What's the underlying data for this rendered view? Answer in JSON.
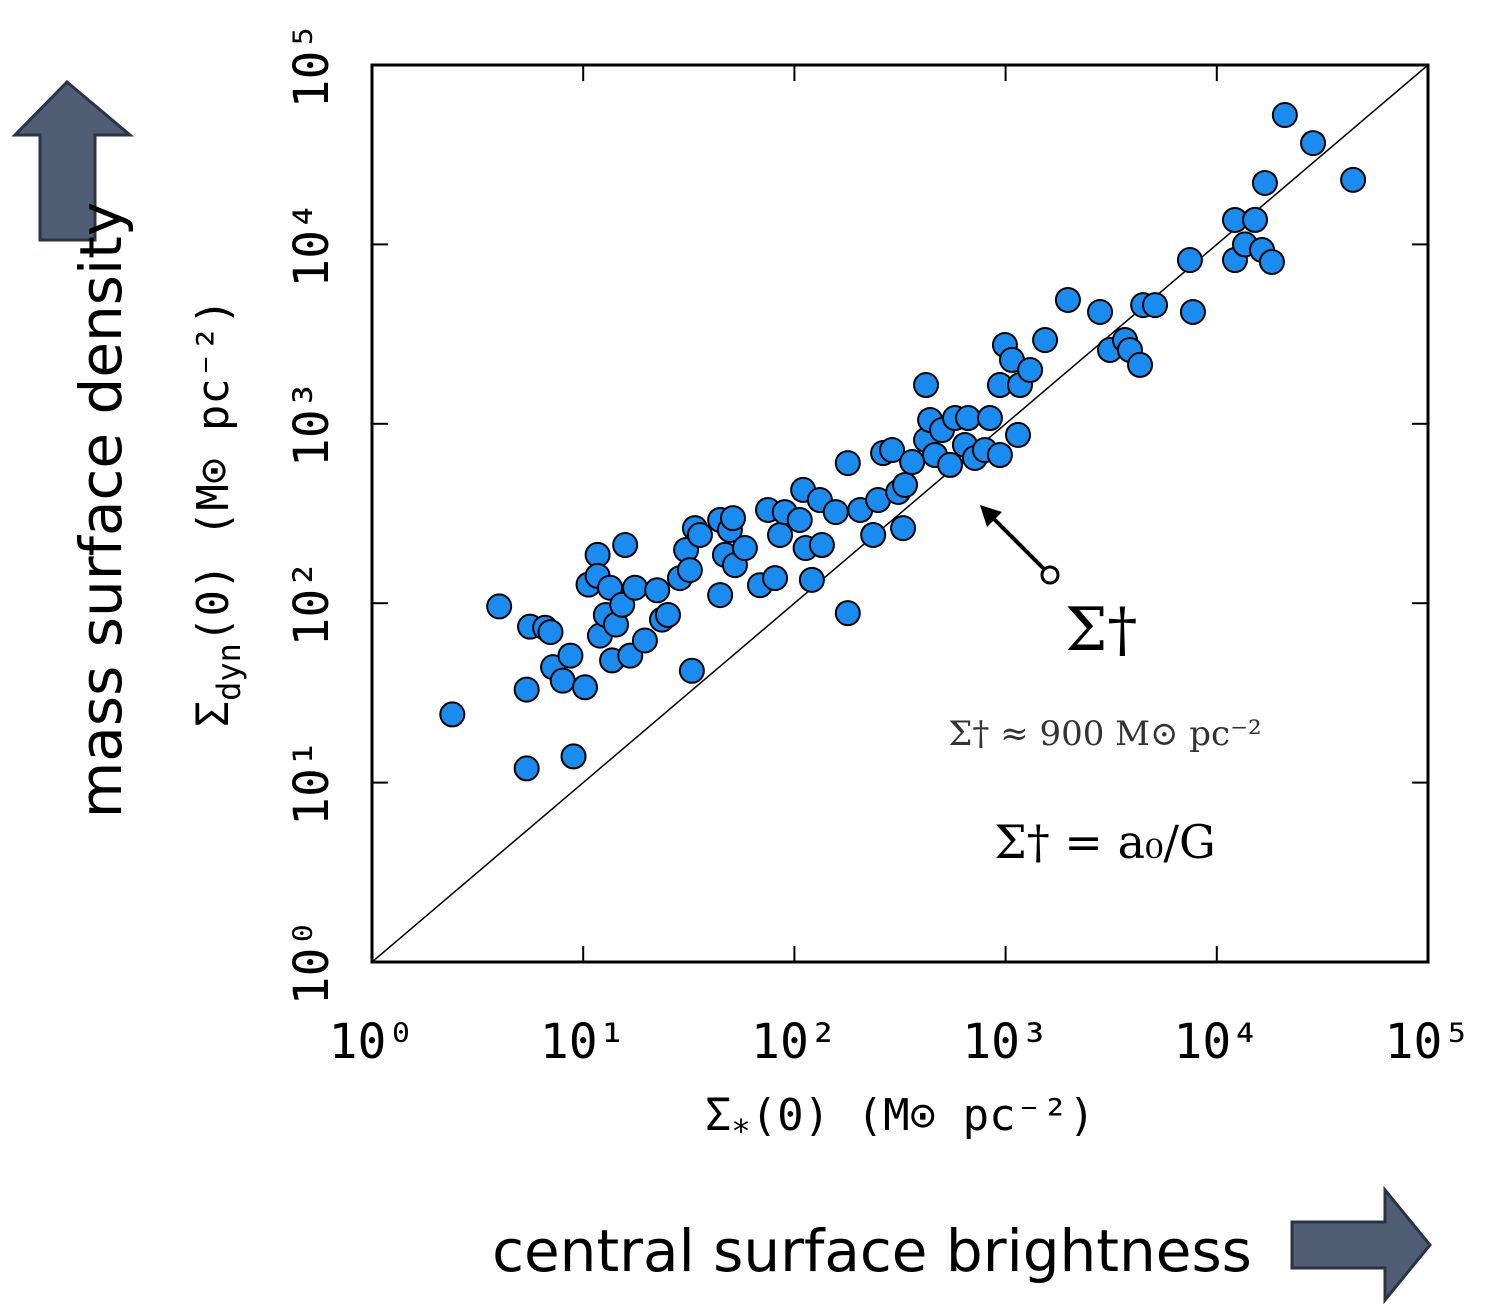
{
  "chart_data": {
    "type": "scatter",
    "xlabel": {
      "symbol": "Σ",
      "subscript": "*",
      "rest": "(0) (M⊙ pc⁻²)"
    },
    "ylabel": {
      "symbol": "Σ",
      "subscript": "dyn",
      "rest": "(0) (M⊙ pc⁻²)"
    },
    "xscale": "log",
    "yscale": "log",
    "xlim": [
      1,
      100000
    ],
    "ylim": [
      1,
      100000
    ],
    "xticks": [
      {
        "value": 1,
        "label": "10⁰"
      },
      {
        "value": 10,
        "label": "10¹"
      },
      {
        "value": 100,
        "label": "10²"
      },
      {
        "value": 1000,
        "label": "10³"
      },
      {
        "value": 10000,
        "label": "10⁴"
      },
      {
        "value": 100000,
        "label": "10⁵"
      }
    ],
    "yticks": [
      {
        "value": 1,
        "label": "10⁰"
      },
      {
        "value": 10,
        "label": "10¹"
      },
      {
        "value": 100,
        "label": "10²"
      },
      {
        "value": 1000,
        "label": "10³"
      },
      {
        "value": 10000,
        "label": "10⁴"
      },
      {
        "value": 100000,
        "label": "10⁵"
      }
    ],
    "color": "#1a8cf0",
    "x": [
      2.4,
      4.0,
      5.4,
      5.4,
      5.6,
      6.6,
      7.0,
      7.2,
      8.0,
      8.7,
      9.0,
      10.2,
      10.6,
      11.7,
      11.7,
      12,
      12.8,
      13.4,
      13.7,
      14.3,
      15.3,
      15.8,
      16.7,
      17.6,
      19.6,
      22.4,
      23.6,
      25.2,
      28.7,
      30.7,
      32,
      32.7,
      33.8,
      35.7,
      44.5,
      44.5,
      46.9,
      49.5,
      52.3,
      51.2,
      58.3,
      68.7,
      75,
      81,
      85.5,
      90,
      106,
      110,
      113,
      121,
      132,
      135,
      157,
      179,
      179,
      205,
      236,
      249,
      263,
      290,
      310,
      327,
      334,
      361,
      420,
      420,
      439,
      463,
      500,
      546,
      576,
      642,
      664,
      716,
      798,
      843,
      940,
      940,
      993,
      1072,
      1145,
      1170,
      1306,
      1538,
      1973,
      2800,
      3120,
      3675,
      3880,
      4330,
      4480,
      5100,
      7460,
      7710,
      12190,
      12190,
      13600,
      15170,
      16370,
      16900,
      18240,
      21000,
      28560,
      44200
    ],
    "values": [
      24,
      96,
      12,
      33,
      74,
      73,
      69,
      44,
      37,
      51,
      14,
      34,
      127,
      186,
      142,
      66,
      86,
      122,
      48,
      76,
      98,
      211,
      51,
      122,
      62,
      118,
      81,
      86,
      138,
      198,
      153,
      42,
      262,
      240,
      111,
      291,
      186,
      256,
      163,
      298,
      203,
      126,
      331,
      138,
      240,
      322,
      291,
      428,
      203,
      135,
      376,
      211,
      322,
      88,
      604,
      331,
      240,
      376,
      687,
      714,
      417,
      262,
      456,
      612,
      1645,
      812,
      1050,
      670,
      923,
      590,
      1077,
      762,
      1077,
      645,
      714,
      1077,
      670,
      1645,
      2750,
      2270,
      867,
      1645,
      1995,
      2930,
      4900,
      4200,
      2580,
      2930,
      2580,
      2130,
      4590,
      4590,
      8180,
      4200,
      13680,
      8180,
      10000,
      13700,
      9310,
      22000,
      7980,
      52600,
      36700,
      22900
    ]
  },
  "annotations": {
    "arrow_label": "Σ†",
    "approx": "Σ† ≈ 900 M⊙ pc⁻²",
    "relation": "Σ† = a₀/G"
  },
  "outer_labels": {
    "y": "mass surface density",
    "x": "central surface brightness"
  }
}
